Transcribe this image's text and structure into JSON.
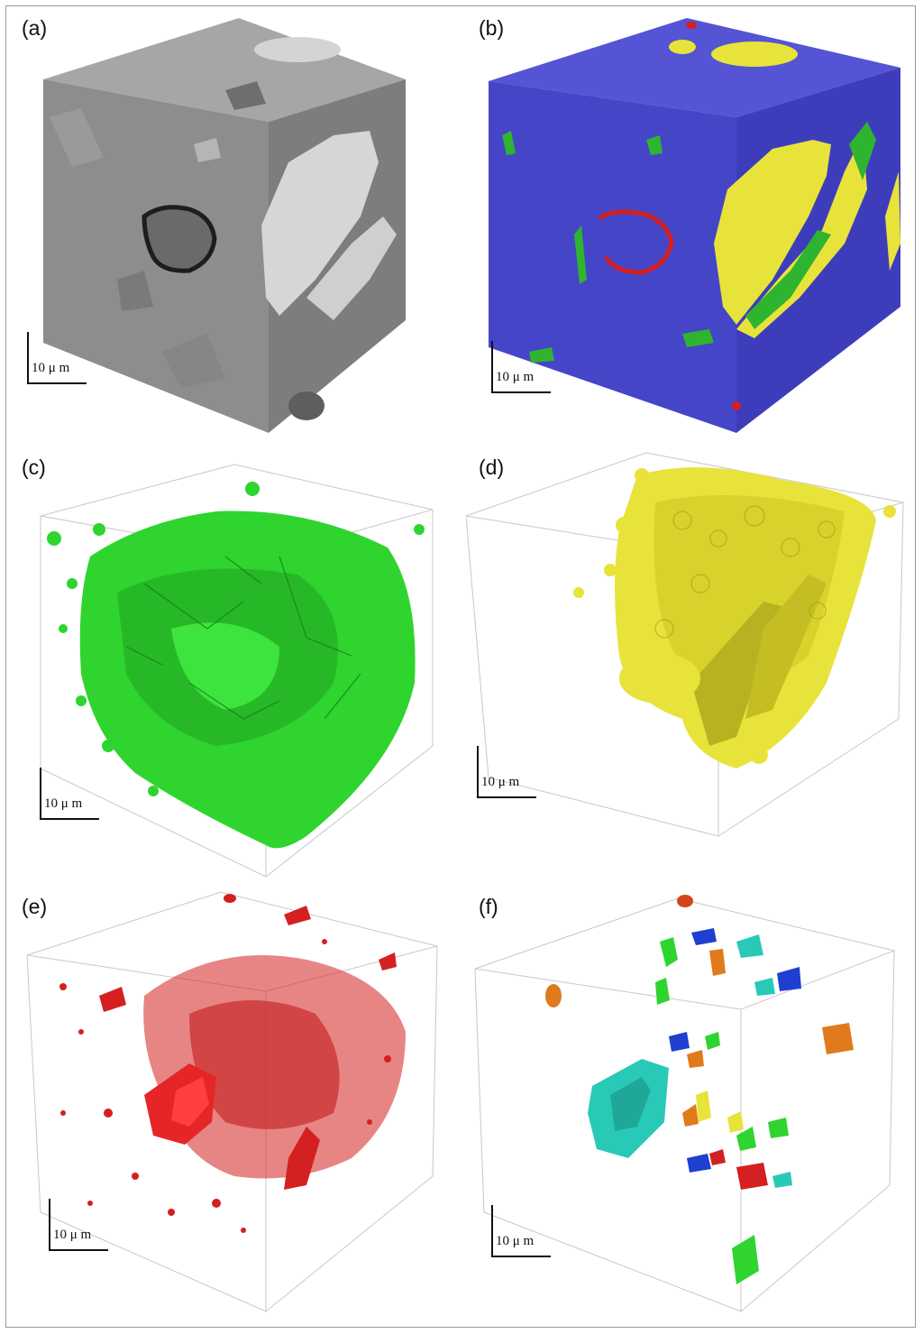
{
  "panels": [
    {
      "label": "(a)",
      "scale": "10 μ m"
    },
    {
      "label": "(b)",
      "scale": "10 μ m"
    },
    {
      "label": "(c)",
      "scale": "10 μ m"
    },
    {
      "label": "(d)",
      "scale": "10 μ m"
    },
    {
      "label": "(e)",
      "scale": "10 μ m"
    },
    {
      "label": "(f)",
      "scale": "10 μ m"
    }
  ],
  "colors": {
    "gray_cube": "#8d8d8d",
    "segmented_matrix": "#4545c8",
    "green_phase": "#2fd42f",
    "yellow_phase": "#e8e33a",
    "red_phase": "#d42020",
    "label_palette": [
      "#29c9b8",
      "#1f3fd0",
      "#e07a1c",
      "#2fd42f",
      "#d42020"
    ]
  }
}
